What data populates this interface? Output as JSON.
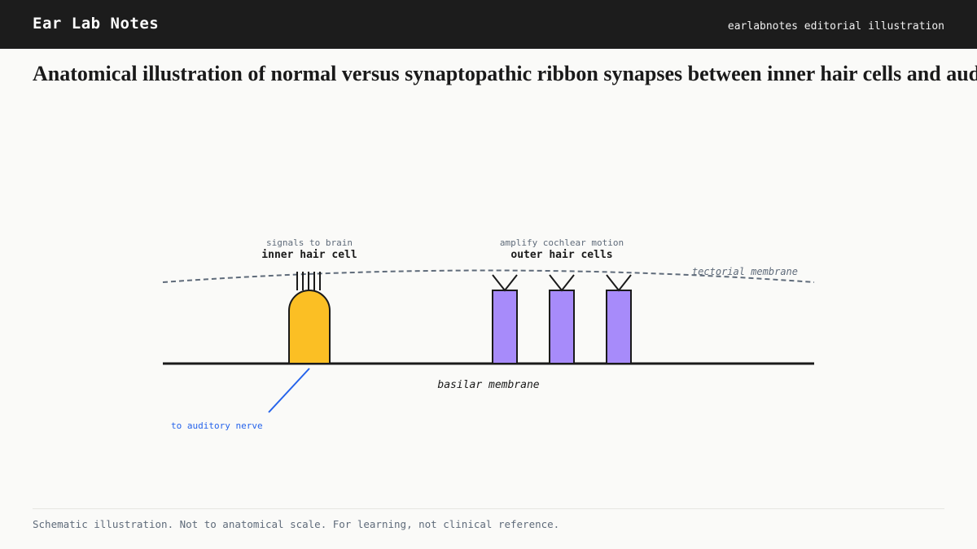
{
  "header": {
    "brand": "Ear Lab Notes",
    "tagline": "earlabnotes editorial illustration"
  },
  "title": "Anatomical illustration of normal versus synaptopathic ribbon synapses between inner hair cells and auditory nerve fibers",
  "diagram": {
    "inner_hair_cell": {
      "caption": "signals to brain",
      "label": "inner hair cell"
    },
    "outer_hair_cells": {
      "caption": "amplify cochlear motion",
      "label": "outer hair cells"
    },
    "tectorial_membrane_label": "tectorial membrane",
    "basilar_membrane_label": "basilar membrane",
    "nerve_label": "to auditory nerve",
    "colors": {
      "inner_hair_cell": "#fbbf24",
      "outer_hair_cells": "#a78bfa",
      "outline": "#1a1a1a",
      "tectorial_membrane": "#5f6b7a",
      "nerve": "#2563eb"
    }
  },
  "footer": {
    "note": "Schematic illustration. Not to anatomical scale. For learning, not clinical reference."
  }
}
